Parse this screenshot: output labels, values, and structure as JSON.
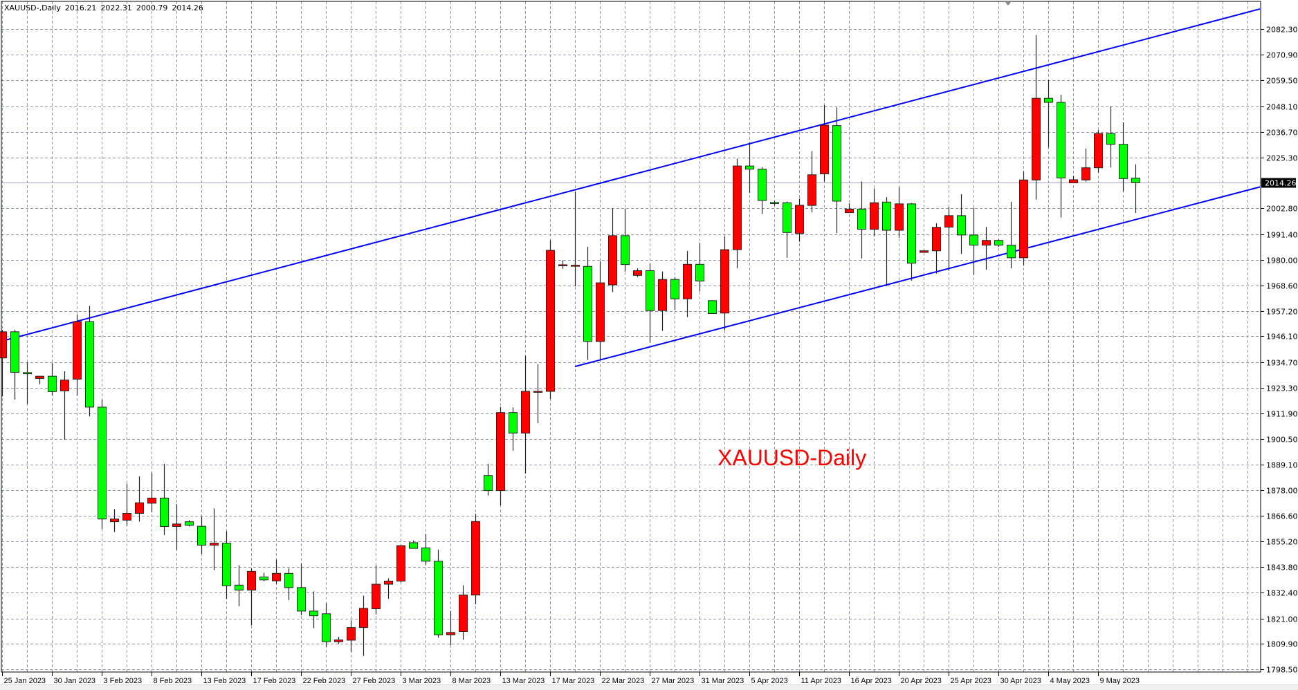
{
  "header": {
    "symbol": "XAUUSD-,Daily",
    "open": "2016.21",
    "high": "2022.31",
    "low": "2000.79",
    "close": "2014.26"
  },
  "chart_data": {
    "type": "candlestick",
    "title": "XAUUSD-Daily",
    "title_color": "#ff0000",
    "bull_color": "#ff0000",
    "bear_color": "#00ff00",
    "trendline_color": "#0000ff",
    "grid": true,
    "ylim": [
      1798.5,
      2082.3
    ],
    "y_ticks": [
      "2082.30",
      "2070.90",
      "2059.50",
      "2048.10",
      "2036.70",
      "2025.30",
      "2002.80",
      "1991.40",
      "1980.00",
      "1968.60",
      "1957.20",
      "1946.10",
      "1934.70",
      "1923.30",
      "1911.90",
      "1900.50",
      "1889.10",
      "1878.00",
      "1866.60",
      "1855.20",
      "1843.80",
      "1832.40",
      "1821.00",
      "1809.90",
      "1798.50"
    ],
    "current_price": "2014.26",
    "x_tick_labels": [
      "25 Jan 2023",
      "30 Jan 2023",
      "3 Feb 2023",
      "8 Feb 2023",
      "13 Feb 2023",
      "17 Feb 2023",
      "22 Feb 2023",
      "27 Feb 2023",
      "3 Mar 2023",
      "8 Mar 2023",
      "13 Mar 2023",
      "17 Mar 2023",
      "22 Mar 2023",
      "27 Mar 2023",
      "31 Mar 2023",
      "5 Apr 2023",
      "11 Apr 2023",
      "16 Apr 2023",
      "20 Apr 2023",
      "25 Apr 2023",
      "30 Apr 2023",
      "4 May 2023",
      "9 May 2023"
    ],
    "x_tick_every_bars": 4,
    "candles": [
      [
        1936.5,
        1949.0,
        1919.4,
        1948.1
      ],
      [
        1948.1,
        1949.0,
        1918.0,
        1930.1
      ],
      [
        1930.0,
        1934.5,
        1916.1,
        1929.5
      ],
      [
        1927.4,
        1928.6,
        1924.9,
        1928.4
      ],
      [
        1928.4,
        1934.2,
        1919.9,
        1921.6
      ],
      [
        1921.9,
        1930.6,
        1900.2,
        1926.7
      ],
      [
        1927.1,
        1955.8,
        1919.9,
        1952.6
      ],
      [
        1952.6,
        1959.6,
        1910.6,
        1914.7
      ],
      [
        1914.7,
        1918.1,
        1860.7,
        1865.1
      ],
      [
        1863.9,
        1869.5,
        1859.4,
        1865.1
      ],
      [
        1864.6,
        1880.8,
        1862.1,
        1867.6
      ],
      [
        1867.6,
        1884.0,
        1864.0,
        1872.3
      ],
      [
        1872.1,
        1885.7,
        1868.1,
        1874.4
      ],
      [
        1874.4,
        1889.5,
        1858.0,
        1861.8
      ],
      [
        1861.8,
        1871.7,
        1851.4,
        1862.9
      ],
      [
        1863.9,
        1864.6,
        1861.8,
        1862.3
      ],
      [
        1861.9,
        1866.2,
        1849.6,
        1853.5
      ],
      [
        1853.5,
        1869.8,
        1842.4,
        1854.4
      ],
      [
        1854.4,
        1859.7,
        1829.7,
        1835.5
      ],
      [
        1835.8,
        1844.6,
        1826.5,
        1833.6
      ],
      [
        1833.6,
        1843.2,
        1818.0,
        1841.9
      ],
      [
        1839.4,
        1841.3,
        1837.5,
        1838.1
      ],
      [
        1837.7,
        1847.1,
        1836.3,
        1841.0
      ],
      [
        1841.0,
        1843.2,
        1829.2,
        1834.7
      ],
      [
        1834.7,
        1845.4,
        1822.4,
        1824.3
      ],
      [
        1824.3,
        1833.0,
        1816.7,
        1822.2
      ],
      [
        1823.1,
        1827.8,
        1808.4,
        1810.7
      ],
      [
        1810.7,
        1812.9,
        1809.7,
        1811.5
      ],
      [
        1811.4,
        1820.2,
        1806.1,
        1817.0
      ],
      [
        1817.0,
        1831.1,
        1804.4,
        1825.5
      ],
      [
        1825.3,
        1844.5,
        1822.8,
        1836.2
      ],
      [
        1836.2,
        1838.8,
        1829.7,
        1837.6
      ],
      [
        1837.6,
        1853.5,
        1837.0,
        1853.3
      ],
      [
        1854.6,
        1855.6,
        1852.0,
        1852.1
      ],
      [
        1852.3,
        1858.5,
        1844.7,
        1846.4
      ],
      [
        1846.4,
        1851.5,
        1812.5,
        1813.8
      ],
      [
        1813.8,
        1824.4,
        1809.1,
        1814.8
      ],
      [
        1815.2,
        1835.7,
        1811.6,
        1831.4
      ],
      [
        1831.4,
        1867.4,
        1827.3,
        1864.0
      ],
      [
        1884.4,
        1889.5,
        1875.5,
        1877.7
      ],
      [
        1877.7,
        1914.8,
        1871.1,
        1912.3
      ],
      [
        1912.3,
        1914.6,
        1895.4,
        1903.2
      ],
      [
        1903.2,
        1937.5,
        1885.3,
        1921.7
      ],
      [
        1921.5,
        1933.7,
        1907.6,
        1921.7
      ],
      [
        1921.7,
        1988.7,
        1918.3,
        1984.2
      ],
      [
        1977.5,
        1979.8,
        1976.0,
        1977.8
      ],
      [
        1977.5,
        2010.0,
        1968.2,
        1977.6
      ],
      [
        1977.1,
        1985.8,
        1935.6,
        1943.8
      ],
      [
        1943.8,
        1979.4,
        1935.6,
        1969.8
      ],
      [
        1968.9,
        2002.9,
        1965.7,
        1990.7
      ],
      [
        1990.7,
        2002.7,
        1974.8,
        1977.9
      ],
      [
        1973.1,
        1976.2,
        1972.3,
        1975.2
      ],
      [
        1975.2,
        1978.3,
        1943.3,
        1957.5
      ],
      [
        1957.5,
        1974.8,
        1948.5,
        1971.3
      ],
      [
        1971.3,
        1972.4,
        1957.7,
        1962.7
      ],
      [
        1962.7,
        1983.9,
        1954.6,
        1978.0
      ],
      [
        1978.0,
        1987.5,
        1966.0,
        1970.6
      ],
      [
        1961.9,
        1962.0,
        1956.1,
        1956.2
      ],
      [
        1956.4,
        1990.4,
        1948.8,
        1984.5
      ],
      [
        1984.5,
        2024.8,
        1976.3,
        2021.6
      ],
      [
        2021.6,
        2032.0,
        2009.6,
        2020.2
      ],
      [
        2020.2,
        2021.0,
        2000.3,
        2006.3
      ],
      [
        2005.4,
        2006.0,
        2004.0,
        2005.3
      ],
      [
        2005.3,
        2005.8,
        1980.9,
        1992.1
      ],
      [
        1991.7,
        2007.1,
        1988.0,
        2004.2
      ],
      [
        2004.1,
        2028.2,
        2001.1,
        2017.7
      ],
      [
        2018.1,
        2048.6,
        2014.7,
        2039.7
      ],
      [
        2039.5,
        2047.6,
        1991.9,
        2006.0
      ],
      [
        2000.9,
        2005.0,
        2000.8,
        2002.5
      ],
      [
        2002.5,
        2014.7,
        1980.6,
        1993.5
      ],
      [
        1993.5,
        2011.6,
        1990.4,
        2005.3
      ],
      [
        2005.6,
        2007.8,
        1968.3,
        1993.1
      ],
      [
        1993.1,
        2012.2,
        1989.8,
        2004.8
      ],
      [
        2004.8,
        2005.2,
        1970.8,
        1978.5
      ],
      [
        1983.3,
        1984.1,
        1983.2,
        1984.0
      ],
      [
        1984.0,
        1996.2,
        1973.9,
        1994.4
      ],
      [
        1994.5,
        2003.4,
        1975.1,
        1999.6
      ],
      [
        1999.6,
        2009.1,
        1982.6,
        1991.0
      ],
      [
        1991.0,
        2003.1,
        1973.3,
        1986.5
      ],
      [
        1986.5,
        1994.6,
        1975.6,
        1988.6
      ],
      [
        1988.6,
        1989.2,
        1985.7,
        1986.5
      ],
      [
        1986.5,
        2005.7,
        1976.2,
        1980.9
      ],
      [
        1980.9,
        2019.2,
        1977.4,
        2015.4
      ],
      [
        2015.4,
        2079.6,
        2006.7,
        2051.6
      ],
      [
        2051.6,
        2059.6,
        2029.8,
        2049.8
      ],
      [
        2049.8,
        2053.1,
        1998.7,
        2016.3
      ],
      [
        2014.1,
        2017.2,
        2014.0,
        2015.5
      ],
      [
        2015.4,
        2029.3,
        2014.7,
        2020.8
      ],
      [
        2020.8,
        2037.5,
        2018.7,
        2036.0
      ],
      [
        2036.0,
        2048.1,
        2020.9,
        2031.2
      ],
      [
        2031.2,
        2040.9,
        2010.3,
        2016.0
      ],
      [
        2016.21,
        2022.31,
        2000.79,
        2014.26
      ]
    ],
    "candle_fields": [
      "open",
      "high",
      "low",
      "close"
    ],
    "trendlines": [
      {
        "name": "upper-channel",
        "from": {
          "bar": 1,
          "price": 1944.0
        },
        "to": {
          "bar": 102,
          "price": 2091.2
        }
      },
      {
        "name": "lower-channel",
        "from": {
          "bar": 47,
          "price": 1932.7
        },
        "to": {
          "bar": 102,
          "price": 2012.3
        }
      }
    ]
  }
}
